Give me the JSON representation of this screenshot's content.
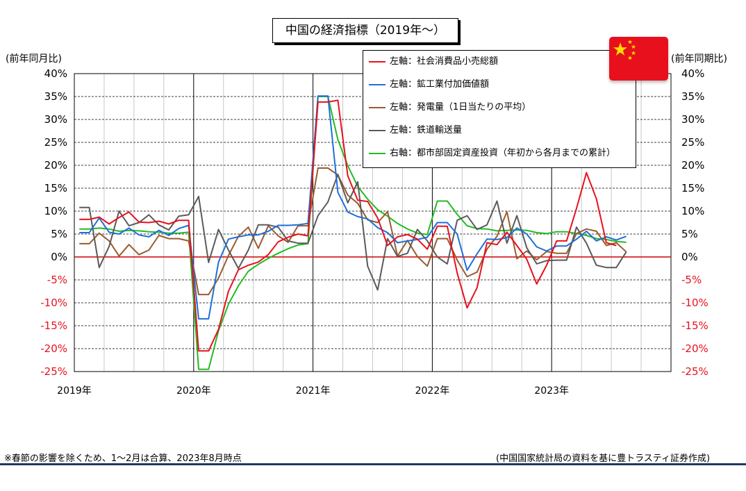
{
  "title": "中国の経済指標（2019年～）",
  "left_axis_label": "(前年同月比)",
  "right_axis_label": "(前年同期比)",
  "footnote_left": "※春節の影響を除くため、1～2月は合算、2023年8月時点",
  "footnote_right": "(中国国家統計局の資料を基に豊トラスティ証券作成)",
  "flag_icon": "china-flag-icon",
  "colors": {
    "retail": "#e8101d",
    "industrial": "#1e6fd9",
    "power": "#9a5b2e",
    "rail": "#5a5a5a",
    "fai": "#22bb22",
    "zero_line": "#cc0000",
    "negative_tick": "#e8101d"
  },
  "chart_data": {
    "type": "line",
    "title": "中国の経済指標（2019年～）",
    "x_labels": [
      "2019年",
      "2020年",
      "2021年",
      "2022年",
      "2023年"
    ],
    "x_start": "2019-01",
    "x_end": "2023-12",
    "y_ticks_left": [
      "40%",
      "35%",
      "30%",
      "25%",
      "20%",
      "15%",
      "10%",
      "5%",
      "0%",
      "-5%",
      "-10%",
      "-15%",
      "-20%",
      "-25%"
    ],
    "y_ticks_right": [
      "40%",
      "35%",
      "30%",
      "25%",
      "20%",
      "15%",
      "10%",
      "5%",
      "0%",
      "-5%",
      "-10%",
      "-15%",
      "-20%",
      "-25%"
    ],
    "ylim": [
      -25,
      40
    ],
    "grid": true,
    "legend_position": "top-right",
    "series": [
      {
        "key": "retail",
        "name": "左軸：社会消費品小売総額",
        "axis": "left",
        "x": [
          "2019-01",
          "2019-02",
          "2019-03",
          "2019-04",
          "2019-05",
          "2019-06",
          "2019-07",
          "2019-08",
          "2019-09",
          "2019-10",
          "2019-11",
          "2019-12",
          "2020-01",
          "2020-02",
          "2020-03",
          "2020-04",
          "2020-05",
          "2020-06",
          "2020-07",
          "2020-08",
          "2020-09",
          "2020-10",
          "2020-11",
          "2020-12",
          "2021-01",
          "2021-02",
          "2021-03",
          "2021-04",
          "2021-05",
          "2021-06",
          "2021-07",
          "2021-08",
          "2021-09",
          "2021-10",
          "2021-11",
          "2021-12",
          "2022-01",
          "2022-02",
          "2022-03",
          "2022-04",
          "2022-05",
          "2022-06",
          "2022-07",
          "2022-08",
          "2022-09",
          "2022-10",
          "2022-11",
          "2022-12",
          "2023-01",
          "2023-02",
          "2023-03",
          "2023-04",
          "2023-05",
          "2023-06",
          "2023-07"
        ],
        "values": [
          8.2,
          8.2,
          8.7,
          7.2,
          8.6,
          9.8,
          7.6,
          7.5,
          7.8,
          7.2,
          8.0,
          8.0,
          -20.5,
          -20.5,
          -15.8,
          -7.5,
          -2.8,
          -1.8,
          -1.1,
          0.5,
          3.3,
          4.3,
          5.0,
          4.6,
          33.8,
          33.8,
          34.2,
          17.7,
          12.4,
          12.1,
          8.5,
          2.5,
          4.4,
          4.9,
          3.9,
          1.7,
          6.7,
          6.7,
          -3.5,
          -11.1,
          -6.7,
          3.1,
          2.7,
          5.4,
          2.5,
          -0.5,
          -5.9,
          -1.8,
          3.5,
          3.5,
          10.6,
          18.4,
          12.7,
          3.1,
          2.5
        ]
      },
      {
        "key": "industrial",
        "name": "左軸：鉱工業付加価値額",
        "axis": "left",
        "x": [
          "2019-01",
          "2019-02",
          "2019-03",
          "2019-04",
          "2019-05",
          "2019-06",
          "2019-07",
          "2019-08",
          "2019-09",
          "2019-10",
          "2019-11",
          "2019-12",
          "2020-01",
          "2020-02",
          "2020-03",
          "2020-04",
          "2020-05",
          "2020-06",
          "2020-07",
          "2020-08",
          "2020-09",
          "2020-10",
          "2020-11",
          "2020-12",
          "2021-01",
          "2021-02",
          "2021-03",
          "2021-04",
          "2021-05",
          "2021-06",
          "2021-07",
          "2021-08",
          "2021-09",
          "2021-10",
          "2021-11",
          "2021-12",
          "2022-01",
          "2022-02",
          "2022-03",
          "2022-04",
          "2022-05",
          "2022-06",
          "2022-07",
          "2022-08",
          "2022-09",
          "2022-10",
          "2022-11",
          "2022-12",
          "2023-01",
          "2023-02",
          "2023-03",
          "2023-04",
          "2023-05",
          "2023-06",
          "2023-07",
          "2023-08"
        ],
        "values": [
          5.3,
          5.3,
          8.5,
          5.4,
          5.0,
          6.3,
          4.8,
          4.4,
          5.8,
          4.7,
          6.2,
          6.9,
          -13.5,
          -13.5,
          -1.1,
          3.9,
          4.4,
          4.8,
          4.8,
          5.6,
          6.9,
          6.9,
          7.0,
          7.3,
          35.1,
          35.1,
          14.1,
          9.8,
          8.8,
          8.3,
          6.4,
          5.3,
          3.1,
          3.5,
          3.8,
          4.3,
          7.5,
          7.5,
          5.0,
          -2.9,
          0.7,
          3.9,
          3.8,
          4.2,
          6.3,
          5.0,
          2.2,
          1.3,
          2.4,
          2.4,
          3.9,
          5.6,
          3.5,
          4.4,
          3.7,
          4.5
        ]
      },
      {
        "key": "power",
        "name": "左軸：発電量（1日当たりの平均）",
        "axis": "left",
        "x": [
          "2019-01",
          "2019-02",
          "2019-03",
          "2019-04",
          "2019-05",
          "2019-06",
          "2019-07",
          "2019-08",
          "2019-09",
          "2019-10",
          "2019-11",
          "2019-12",
          "2020-01",
          "2020-02",
          "2020-03",
          "2020-04",
          "2020-05",
          "2020-06",
          "2020-07",
          "2020-08",
          "2020-09",
          "2020-10",
          "2020-11",
          "2020-12",
          "2021-01",
          "2021-02",
          "2021-03",
          "2021-04",
          "2021-05",
          "2021-06",
          "2021-07",
          "2021-08",
          "2021-09",
          "2021-10",
          "2021-11",
          "2021-12",
          "2022-01",
          "2022-02",
          "2022-03",
          "2022-04",
          "2022-05",
          "2022-06",
          "2022-07",
          "2022-08",
          "2022-09",
          "2022-10",
          "2022-11",
          "2022-12",
          "2023-01",
          "2023-02",
          "2023-03",
          "2023-04",
          "2023-05",
          "2023-06",
          "2023-07",
          "2023-08"
        ],
        "values": [
          2.9,
          2.9,
          5.2,
          3.5,
          0.2,
          2.7,
          0.5,
          1.5,
          4.7,
          4.0,
          4.0,
          3.5,
          -8.2,
          -8.2,
          -4.6,
          0.3,
          4.5,
          6.5,
          1.9,
          6.8,
          4.6,
          3.2,
          6.8,
          6.8,
          19.4,
          19.4,
          17.9,
          13.5,
          11.7,
          8.1,
          7.5,
          9.9,
          0.2,
          3.6,
          0.1,
          -2.0,
          4.0,
          4.0,
          -0.7,
          -4.3,
          -3.3,
          1.7,
          4.5,
          9.9,
          -0.4,
          1.3,
          -0.6,
          1.2,
          0.8,
          0.8,
          5.1,
          6.1,
          5.6,
          2.5,
          3.1,
          1.1
        ]
      },
      {
        "key": "rail",
        "name": "左軸：鉄道輸送量",
        "axis": "left",
        "x": [
          "2019-01",
          "2019-02",
          "2019-03",
          "2019-04",
          "2019-05",
          "2019-06",
          "2019-07",
          "2019-08",
          "2019-09",
          "2019-10",
          "2019-11",
          "2019-12",
          "2020-01",
          "2020-02",
          "2020-03",
          "2020-04",
          "2020-05",
          "2020-06",
          "2020-07",
          "2020-08",
          "2020-09",
          "2020-10",
          "2020-11",
          "2020-12",
          "2021-01",
          "2021-02",
          "2021-03",
          "2021-04",
          "2021-05",
          "2021-06",
          "2021-07",
          "2021-08",
          "2021-09",
          "2021-10",
          "2021-11",
          "2021-12",
          "2022-01",
          "2022-02",
          "2022-03",
          "2022-04",
          "2022-05",
          "2022-06",
          "2022-07",
          "2022-08",
          "2022-09",
          "2022-10",
          "2022-11",
          "2022-12",
          "2023-01",
          "2023-02",
          "2023-03",
          "2023-04",
          "2023-05",
          "2023-06",
          "2023-07",
          "2023-08"
        ],
        "values": [
          10.8,
          10.8,
          -2.3,
          2.3,
          10.0,
          6.8,
          7.5,
          9.2,
          7.0,
          5.9,
          8.9,
          9.2,
          13.2,
          -1.2,
          6.0,
          1.5,
          -2.5,
          1.5,
          7.0,
          7.0,
          6.5,
          3.5,
          3.0,
          3.0,
          9.0,
          12.0,
          18.0,
          11.8,
          16.4,
          -2.0,
          -7.2,
          4.0,
          0.1,
          0.8,
          6.0,
          3.5,
          0.0,
          -1.5,
          8.0,
          9.0,
          6.0,
          7.0,
          12.2,
          3.0,
          9.0,
          2.0,
          -1.5,
          -0.8,
          -0.7,
          -0.7,
          6.5,
          3.0,
          -1.8,
          -2.3,
          -2.3,
          1.1
        ]
      },
      {
        "key": "fai",
        "name": "右軸：都市部固定資産投資（年初から各月までの累計）",
        "axis": "right",
        "x": [
          "2019-01",
          "2019-02",
          "2019-03",
          "2019-04",
          "2019-05",
          "2019-06",
          "2019-07",
          "2019-08",
          "2019-09",
          "2019-10",
          "2019-11",
          "2019-12",
          "2020-01",
          "2020-02",
          "2020-03",
          "2020-04",
          "2020-05",
          "2020-06",
          "2020-07",
          "2020-08",
          "2020-09",
          "2020-10",
          "2020-11",
          "2020-12",
          "2021-01",
          "2021-02",
          "2021-03",
          "2021-04",
          "2021-05",
          "2021-06",
          "2021-07",
          "2021-08",
          "2021-09",
          "2021-10",
          "2021-11",
          "2021-12",
          "2022-01",
          "2022-02",
          "2022-03",
          "2022-04",
          "2022-05",
          "2022-06",
          "2022-07",
          "2022-08",
          "2022-09",
          "2022-10",
          "2022-11",
          "2022-12",
          "2023-01",
          "2023-02",
          "2023-03",
          "2023-04",
          "2023-05",
          "2023-06",
          "2023-07",
          "2023-08"
        ],
        "values": [
          6.1,
          6.1,
          6.3,
          6.1,
          5.6,
          5.8,
          5.7,
          5.5,
          5.4,
          5.2,
          5.2,
          5.4,
          -24.5,
          -24.5,
          -16.1,
          -10.3,
          -6.3,
          -3.1,
          -1.6,
          -0.3,
          0.8,
          1.8,
          2.6,
          2.9,
          35.0,
          35.0,
          25.6,
          19.9,
          15.4,
          12.6,
          10.3,
          8.9,
          7.3,
          6.1,
          5.2,
          4.9,
          12.2,
          12.2,
          9.3,
          6.8,
          6.2,
          6.1,
          5.7,
          5.8,
          5.9,
          5.8,
          5.3,
          5.1,
          5.5,
          5.5,
          5.1,
          4.7,
          4.0,
          3.8,
          3.4,
          3.2
        ]
      }
    ]
  }
}
